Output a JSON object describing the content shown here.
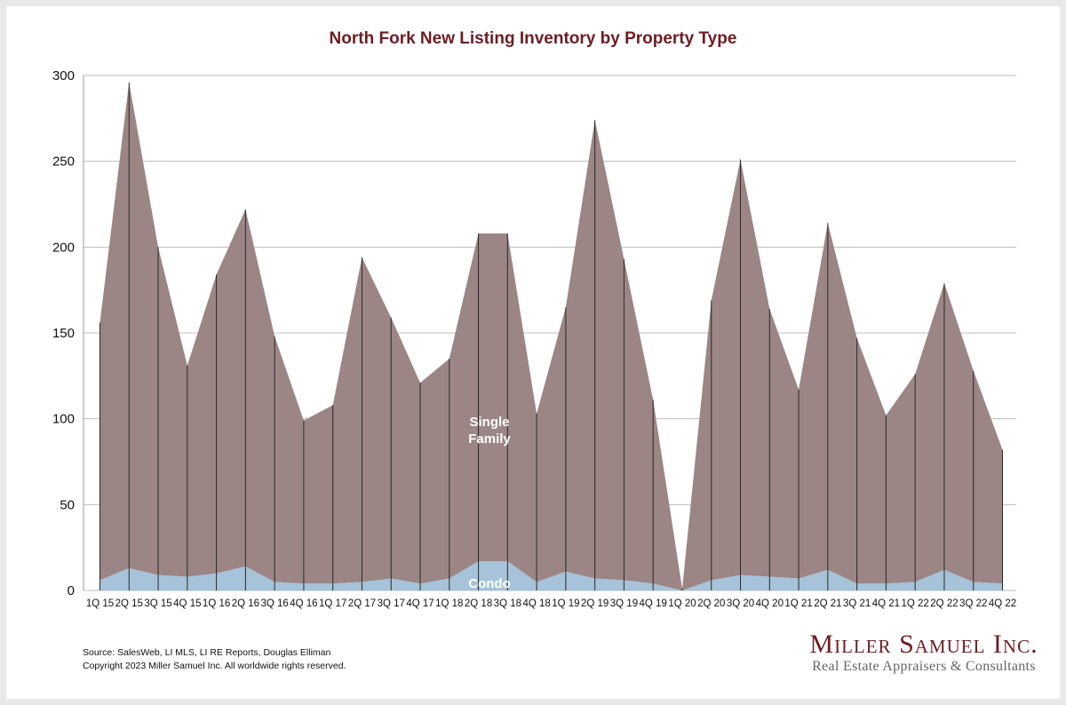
{
  "chart_data": {
    "type": "area",
    "stacked": true,
    "title": "North Fork New Listing Inventory by Property Type",
    "xlabel": "",
    "ylabel": "",
    "ylim": [
      0,
      300
    ],
    "yticks": [
      0,
      50,
      100,
      150,
      200,
      250,
      300
    ],
    "grid": true,
    "categories": [
      "1Q 15",
      "2Q 15",
      "3Q 15",
      "4Q 15",
      "1Q 16",
      "2Q 16",
      "3Q 16",
      "4Q 16",
      "1Q 17",
      "2Q 17",
      "3Q 17",
      "4Q 17",
      "1Q 18",
      "2Q 18",
      "3Q 18",
      "4Q 18",
      "1Q 19",
      "2Q 19",
      "3Q 19",
      "4Q 19",
      "1Q 20",
      "2Q 20",
      "3Q 20",
      "4Q 20",
      "1Q 21",
      "2Q 21",
      "3Q 21",
      "4Q 21",
      "1Q 22",
      "2Q 22",
      "3Q 22",
      "4Q 22"
    ],
    "series": [
      {
        "name": "Condo",
        "color": "#a6c3d9",
        "values": [
          6,
          13,
          9,
          8,
          10,
          14,
          5,
          4,
          4,
          5,
          7,
          4,
          7,
          17,
          17,
          5,
          11,
          7,
          6,
          4,
          0,
          6,
          9,
          8,
          7,
          12,
          4,
          4,
          5,
          12,
          5,
          4
        ]
      },
      {
        "name": "Single Family",
        "color": "#9b8585",
        "values": [
          150,
          283,
          191,
          123,
          174,
          208,
          143,
          95,
          104,
          189,
          152,
          117,
          128,
          191,
          191,
          98,
          154,
          267,
          187,
          107,
          1,
          163,
          242,
          156,
          110,
          202,
          143,
          98,
          121,
          167,
          123,
          78
        ]
      }
    ]
  },
  "footer": {
    "source": "Source: SalesWeb, LI MLS, LI RE Reports, Douglas Elliman",
    "copyright": "Copyright 2023 Miller Samuel Inc.  All worldwide rights reserved."
  },
  "logo": {
    "name": "Miller Samuel Inc.",
    "tagline": "Real Estate Appraisers & Consultants"
  }
}
